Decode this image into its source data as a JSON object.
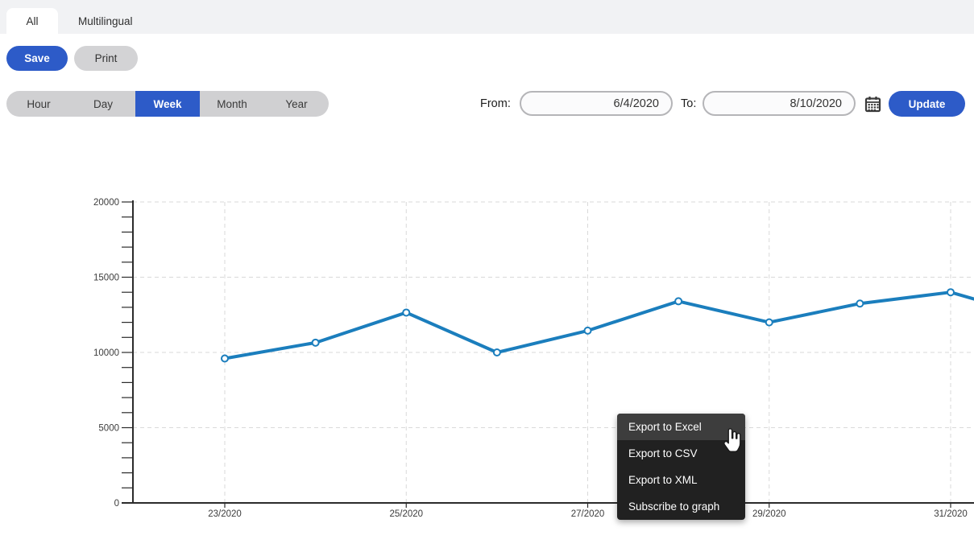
{
  "tabs": {
    "items": [
      {
        "label": "All",
        "active": true
      },
      {
        "label": "Multilingual",
        "active": false
      }
    ]
  },
  "toolbar": {
    "save_label": "Save",
    "print_label": "Print"
  },
  "range_tabs": {
    "options": [
      "Hour",
      "Day",
      "Week",
      "Month",
      "Year"
    ],
    "selected": "Week"
  },
  "date_filter": {
    "from_label": "From:",
    "from_value": "6/4/2020",
    "to_label": "To:",
    "to_value": "8/10/2020",
    "calendar_icon": "calendar-icon",
    "update_label": "Update"
  },
  "context_menu": {
    "items": [
      {
        "label": "Export to Excel",
        "hovered": true
      },
      {
        "label": "Export to CSV",
        "hovered": false
      },
      {
        "label": "Export to XML",
        "hovered": false
      },
      {
        "label": "Subscribe to graph",
        "hovered": false
      }
    ]
  },
  "colors": {
    "accent_blue": "#2d5bc8",
    "line_blue": "#1b7ebd",
    "menu_bg": "#212121",
    "menu_hover_bg": "#3d3d3d",
    "tabbar_bg": "#f1f2f4",
    "segment_bg": "#d0d0d2",
    "grid_gray": "#d9d9d9",
    "axis_dark": "#2b2b2b"
  },
  "chart_data": {
    "type": "line",
    "title": "",
    "xlabel": "",
    "ylabel": "",
    "categories": [
      "23/2020",
      "24/2020",
      "25/2020",
      "26/2020",
      "27/2020",
      "28/2020",
      "29/2020",
      "30/2020",
      "31/2020"
    ],
    "values": [
      9600,
      10650,
      12650,
      10000,
      11450,
      13400,
      12000,
      13250,
      14000
    ],
    "edge_exit_value": 13550,
    "x_tick_labels": [
      "23/2020",
      "25/2020",
      "27/2020",
      "29/2020",
      "31/2020"
    ],
    "x_tick_indices": [
      0,
      2,
      4,
      6,
      8
    ],
    "ylim": [
      0,
      20000
    ],
    "y_major_step": 5000,
    "y_minor_step": 1000,
    "grid": "dashed",
    "legend": "none"
  }
}
